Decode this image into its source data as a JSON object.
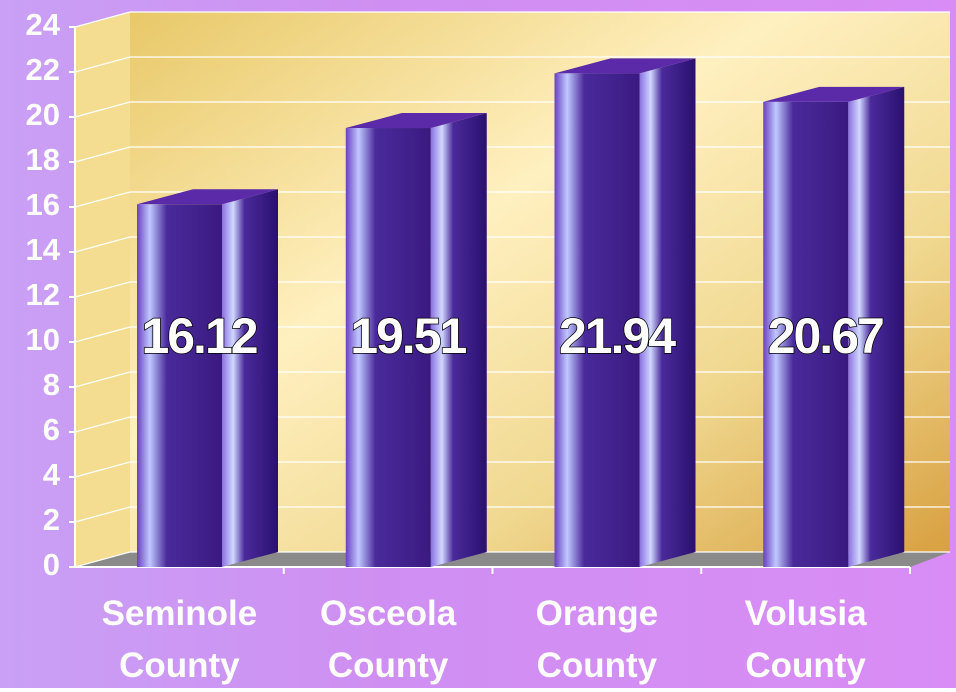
{
  "chart_data": {
    "type": "bar",
    "categories": [
      "Seminole County",
      "Osceola County",
      "Orange County",
      "Volusia County"
    ],
    "values": [
      16.12,
      19.51,
      21.94,
      20.67
    ],
    "color": "#5a2aa8",
    "ylim": [
      0,
      24
    ],
    "yticks": [
      0,
      2,
      4,
      6,
      8,
      10,
      12,
      14,
      16,
      18,
      20,
      22,
      24
    ],
    "grid": true
  }
}
